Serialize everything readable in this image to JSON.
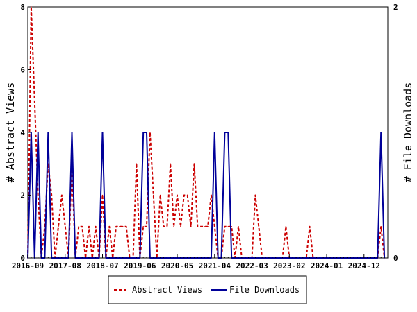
{
  "chart_data": {
    "type": "line",
    "ylabel_left": "# Abstract Views",
    "ylabel_right": "# File Downloads",
    "y_left_lim": [
      0,
      8
    ],
    "y_right_lim": [
      0,
      2
    ],
    "y_left_ticks": [
      "0",
      "2",
      "4",
      "6",
      "8"
    ],
    "y_right_ticks": [
      "0",
      "2"
    ],
    "x_range": [
      "2016-09",
      "2025-07"
    ],
    "x_ticks": [
      "2016-09",
      "2017-08",
      "2018-07",
      "2019-06",
      "2020-05",
      "2021-04",
      "2022-03",
      "2023-02",
      "2024-01",
      "2024-12"
    ],
    "grid": false,
    "legend_position": "bottom",
    "series": [
      {
        "name": "Abstract Views",
        "axis": "left",
        "color": "#cc0000",
        "style": "dashed",
        "points": [
          [
            "2016-09",
            0
          ],
          [
            "2016-10",
            8
          ],
          [
            "2016-11",
            5
          ],
          [
            "2016-12",
            2
          ],
          [
            "2017-01",
            0
          ],
          [
            "2017-02",
            1
          ],
          [
            "2017-03",
            3
          ],
          [
            "2017-04",
            2
          ],
          [
            "2017-05",
            0
          ],
          [
            "2017-06",
            1
          ],
          [
            "2017-07",
            2
          ],
          [
            "2017-08",
            1
          ],
          [
            "2017-09",
            0
          ],
          [
            "2017-10",
            3
          ],
          [
            "2017-11",
            0
          ],
          [
            "2017-12",
            1
          ],
          [
            "2018-01",
            1
          ],
          [
            "2018-02",
            0
          ],
          [
            "2018-03",
            1
          ],
          [
            "2018-04",
            0
          ],
          [
            "2018-05",
            1
          ],
          [
            "2018-06",
            0
          ],
          [
            "2018-07",
            2
          ],
          [
            "2018-08",
            0
          ],
          [
            "2018-09",
            1
          ],
          [
            "2018-10",
            0
          ],
          [
            "2018-11",
            1
          ],
          [
            "2018-12",
            1
          ],
          [
            "2019-01",
            1
          ],
          [
            "2019-02",
            1
          ],
          [
            "2019-03",
            0
          ],
          [
            "2019-04",
            0
          ],
          [
            "2019-05",
            3
          ],
          [
            "2019-06",
            0
          ],
          [
            "2019-07",
            1
          ],
          [
            "2019-08",
            1
          ],
          [
            "2019-09",
            4
          ],
          [
            "2019-10",
            2
          ],
          [
            "2019-11",
            0
          ],
          [
            "2019-12",
            2
          ],
          [
            "2020-01",
            1
          ],
          [
            "2020-02",
            1
          ],
          [
            "2020-03",
            3
          ],
          [
            "2020-04",
            1
          ],
          [
            "2020-05",
            2
          ],
          [
            "2020-06",
            1
          ],
          [
            "2020-07",
            2
          ],
          [
            "2020-08",
            2
          ],
          [
            "2020-09",
            1
          ],
          [
            "2020-10",
            3
          ],
          [
            "2020-11",
            1
          ],
          [
            "2020-12",
            1
          ],
          [
            "2021-01",
            1
          ],
          [
            "2021-02",
            1
          ],
          [
            "2021-03",
            2
          ],
          [
            "2021-04",
            1
          ],
          [
            "2021-05",
            0
          ],
          [
            "2021-06",
            0
          ],
          [
            "2021-07",
            1
          ],
          [
            "2021-08",
            1
          ],
          [
            "2021-09",
            1
          ],
          [
            "2021-10",
            0
          ],
          [
            "2021-11",
            1
          ],
          [
            "2021-12",
            0
          ],
          [
            "2022-01",
            0
          ],
          [
            "2022-02",
            0
          ],
          [
            "2022-03",
            0
          ],
          [
            "2022-04",
            2
          ],
          [
            "2022-05",
            1
          ],
          [
            "2022-06",
            0
          ],
          [
            "2022-07",
            0
          ],
          [
            "2022-08",
            0
          ],
          [
            "2022-09",
            0
          ],
          [
            "2022-10",
            0
          ],
          [
            "2022-11",
            0
          ],
          [
            "2022-12",
            0
          ],
          [
            "2023-01",
            1
          ],
          [
            "2023-02",
            0
          ],
          [
            "2023-03",
            0
          ],
          [
            "2023-04",
            0
          ],
          [
            "2023-05",
            0
          ],
          [
            "2023-06",
            0
          ],
          [
            "2023-07",
            0
          ],
          [
            "2023-08",
            1
          ],
          [
            "2023-09",
            0
          ],
          [
            "2023-10",
            0
          ],
          [
            "2023-11",
            0
          ],
          [
            "2023-12",
            0
          ],
          [
            "2024-01",
            0
          ],
          [
            "2024-02",
            0
          ],
          [
            "2024-03",
            0
          ],
          [
            "2024-04",
            0
          ],
          [
            "2024-05",
            0
          ],
          [
            "2024-06",
            0
          ],
          [
            "2024-07",
            0
          ],
          [
            "2024-08",
            0
          ],
          [
            "2024-09",
            0
          ],
          [
            "2024-10",
            0
          ],
          [
            "2024-11",
            0
          ],
          [
            "2024-12",
            0
          ],
          [
            "2025-01",
            0
          ],
          [
            "2025-02",
            0
          ],
          [
            "2025-03",
            0
          ],
          [
            "2025-04",
            0
          ],
          [
            "2025-05",
            1
          ],
          [
            "2025-06",
            0
          ]
        ]
      },
      {
        "name": "File Downloads",
        "axis": "right",
        "color": "#000099",
        "style": "solid",
        "points": [
          [
            "2016-09",
            0
          ],
          [
            "2016-10",
            1
          ],
          [
            "2016-11",
            0
          ],
          [
            "2016-12",
            1
          ],
          [
            "2017-01",
            0
          ],
          [
            "2017-02",
            0
          ],
          [
            "2017-03",
            1
          ],
          [
            "2017-04",
            0
          ],
          [
            "2017-05",
            0
          ],
          [
            "2017-06",
            0
          ],
          [
            "2017-07",
            0
          ],
          [
            "2017-08",
            0
          ],
          [
            "2017-09",
            0
          ],
          [
            "2017-10",
            1
          ],
          [
            "2017-11",
            0
          ],
          [
            "2017-12",
            0
          ],
          [
            "2018-01",
            0
          ],
          [
            "2018-02",
            0
          ],
          [
            "2018-03",
            0
          ],
          [
            "2018-04",
            0
          ],
          [
            "2018-05",
            0
          ],
          [
            "2018-06",
            0
          ],
          [
            "2018-07",
            1
          ],
          [
            "2018-08",
            0
          ],
          [
            "2018-09",
            0
          ],
          [
            "2018-10",
            0
          ],
          [
            "2018-11",
            0
          ],
          [
            "2018-12",
            0
          ],
          [
            "2019-01",
            0
          ],
          [
            "2019-02",
            0
          ],
          [
            "2019-03",
            0
          ],
          [
            "2019-04",
            0
          ],
          [
            "2019-05",
            0
          ],
          [
            "2019-06",
            0
          ],
          [
            "2019-07",
            1
          ],
          [
            "2019-08",
            1
          ],
          [
            "2019-09",
            0
          ],
          [
            "2019-10",
            0
          ],
          [
            "2019-11",
            0
          ],
          [
            "2019-12",
            0
          ],
          [
            "2020-01",
            0
          ],
          [
            "2020-02",
            0
          ],
          [
            "2020-03",
            0
          ],
          [
            "2020-04",
            0
          ],
          [
            "2020-05",
            0
          ],
          [
            "2020-06",
            0
          ],
          [
            "2020-07",
            0
          ],
          [
            "2020-08",
            0
          ],
          [
            "2020-09",
            0
          ],
          [
            "2020-10",
            0
          ],
          [
            "2020-11",
            0
          ],
          [
            "2020-12",
            0
          ],
          [
            "2021-01",
            0
          ],
          [
            "2021-02",
            0
          ],
          [
            "2021-03",
            0
          ],
          [
            "2021-04",
            1
          ],
          [
            "2021-05",
            0
          ],
          [
            "2021-06",
            0
          ],
          [
            "2021-07",
            1
          ],
          [
            "2021-08",
            1
          ],
          [
            "2021-09",
            0
          ],
          [
            "2021-10",
            0
          ],
          [
            "2021-11",
            0
          ],
          [
            "2021-12",
            0
          ],
          [
            "2022-01",
            0
          ],
          [
            "2022-02",
            0
          ],
          [
            "2022-03",
            0
          ],
          [
            "2022-04",
            0
          ],
          [
            "2022-05",
            0
          ],
          [
            "2022-06",
            0
          ],
          [
            "2022-07",
            0
          ],
          [
            "2022-08",
            0
          ],
          [
            "2022-09",
            0
          ],
          [
            "2022-10",
            0
          ],
          [
            "2022-11",
            0
          ],
          [
            "2022-12",
            0
          ],
          [
            "2023-01",
            0
          ],
          [
            "2023-02",
            0
          ],
          [
            "2023-03",
            0
          ],
          [
            "2023-04",
            0
          ],
          [
            "2023-05",
            0
          ],
          [
            "2023-06",
            0
          ],
          [
            "2023-07",
            0
          ],
          [
            "2023-08",
            0
          ],
          [
            "2023-09",
            0
          ],
          [
            "2023-10",
            0
          ],
          [
            "2023-11",
            0
          ],
          [
            "2023-12",
            0
          ],
          [
            "2024-01",
            0
          ],
          [
            "2024-02",
            0
          ],
          [
            "2024-03",
            0
          ],
          [
            "2024-04",
            0
          ],
          [
            "2024-05",
            0
          ],
          [
            "2024-06",
            0
          ],
          [
            "2024-07",
            0
          ],
          [
            "2024-08",
            0
          ],
          [
            "2024-09",
            0
          ],
          [
            "2024-10",
            0
          ],
          [
            "2024-11",
            0
          ],
          [
            "2024-12",
            0
          ],
          [
            "2025-01",
            0
          ],
          [
            "2025-02",
            0
          ],
          [
            "2025-03",
            0
          ],
          [
            "2025-04",
            0
          ],
          [
            "2025-05",
            1
          ],
          [
            "2025-06",
            0
          ]
        ]
      }
    ]
  }
}
